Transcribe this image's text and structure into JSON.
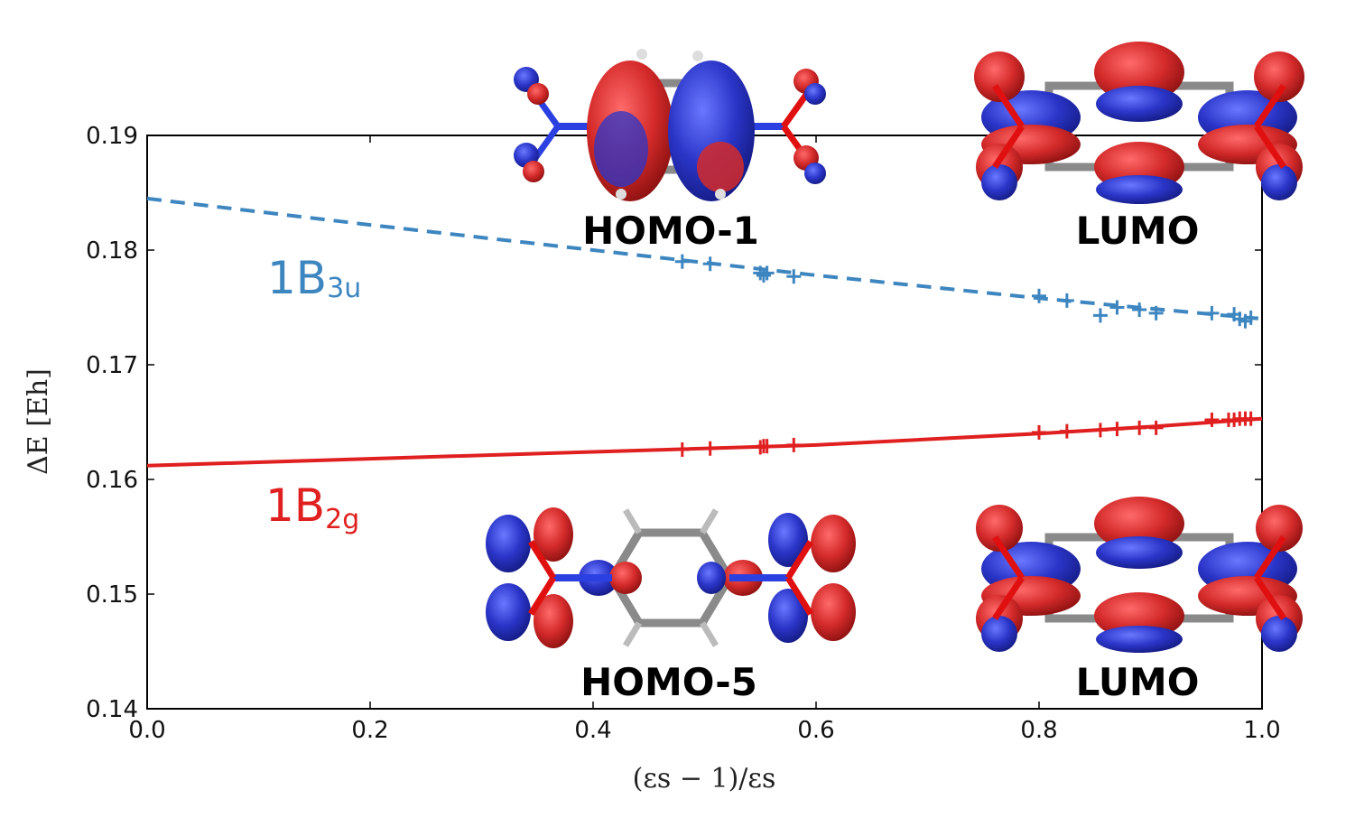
{
  "chart_data": {
    "type": "line",
    "xlabel": "(εs − 1)/εs",
    "ylabel": "ΔE [Eh]",
    "xlim": [
      0.0,
      1.0
    ],
    "ylim": [
      0.14,
      0.19
    ],
    "xticks": [
      "0.0",
      "0.2",
      "0.4",
      "0.6",
      "0.8",
      "1.0"
    ],
    "yticks": [
      "0.19",
      "0.18",
      "0.17",
      "0.16",
      "0.15",
      "0.14"
    ],
    "xtick_values": [
      0.0,
      0.2,
      0.4,
      0.6,
      0.8,
      1.0
    ],
    "ytick_values": [
      0.19,
      0.18,
      0.17,
      0.16,
      0.15,
      0.14
    ],
    "grid": false,
    "series": [
      {
        "name": "1B3u",
        "label_main": "1B",
        "label_sub": "3u",
        "color": "#3d86c0",
        "style": "dashed",
        "line": {
          "x": [
            0.0,
            0.2,
            0.4,
            0.6,
            0.8,
            0.9,
            1.0
          ],
          "y": [
            0.1845,
            0.1822,
            0.18,
            0.1778,
            0.1758,
            0.1749,
            0.174
          ]
        },
        "markers": {
          "x": [
            0.48,
            0.505,
            0.55,
            0.553,
            0.556,
            0.58,
            0.8,
            0.825,
            0.855,
            0.87,
            0.89,
            0.905,
            0.955,
            0.975,
            0.98,
            0.985,
            0.99
          ],
          "y": [
            0.179,
            0.1788,
            0.178,
            0.1778,
            0.178,
            0.1777,
            0.176,
            0.1756,
            0.1743,
            0.175,
            0.1748,
            0.1745,
            0.1745,
            0.1744,
            0.174,
            0.1738,
            0.1741
          ]
        }
      },
      {
        "name": "1B2g",
        "label_main": "1B",
        "label_sub": "2g",
        "color": "#e02020",
        "style": "solid",
        "line": {
          "x": [
            0.0,
            0.2,
            0.4,
            0.6,
            0.8,
            0.9,
            1.0
          ],
          "y": [
            0.1612,
            0.1618,
            0.1624,
            0.163,
            0.164,
            0.1646,
            0.1653
          ]
        },
        "markers": {
          "x": [
            0.48,
            0.505,
            0.55,
            0.553,
            0.556,
            0.58,
            0.8,
            0.825,
            0.855,
            0.87,
            0.89,
            0.905,
            0.955,
            0.97,
            0.975,
            0.98,
            0.985,
            0.99
          ],
          "y": [
            0.1626,
            0.1627,
            0.1628,
            0.1629,
            0.1629,
            0.163,
            0.1641,
            0.1642,
            0.1643,
            0.1644,
            0.1645,
            0.1645,
            0.1652,
            0.1652,
            0.1652,
            0.1653,
            0.1653,
            0.1653
          ]
        }
      }
    ],
    "annotations": {
      "homo1": "HOMO-1",
      "lumo_top": "LUMO",
      "homo5": "HOMO-5",
      "lumo_bottom": "LUMO"
    }
  },
  "colors": {
    "lobe_red": "#d42a2a",
    "lobe_blue": "#2a35c8",
    "bond_gray": "#8a8a8a",
    "bond_blue": "#2b40e0",
    "bond_red": "#e01010"
  }
}
